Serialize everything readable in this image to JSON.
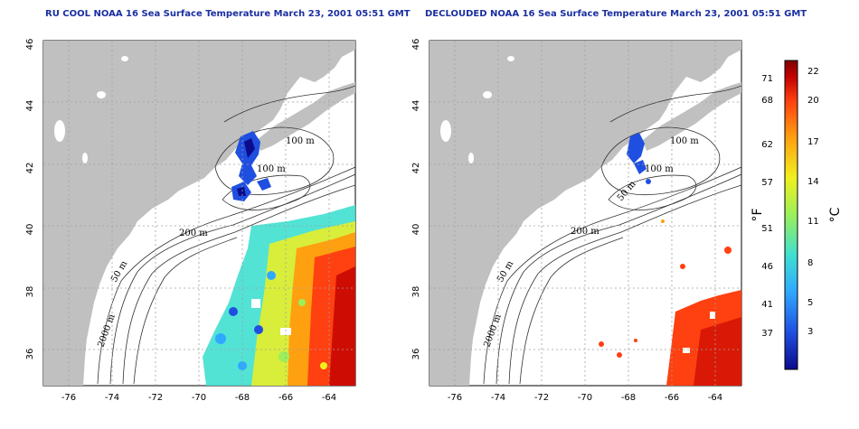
{
  "panels": [
    {
      "title": "RU COOL NOAA 16 Sea Surface Temperature March 23, 2001 05:51 GMT",
      "contour_labels": [
        "100 m",
        "100 m",
        "200 m",
        "50 m",
        "2000 m"
      ]
    },
    {
      "title": "DECLOUDED NOAA 16 Sea Surface Temperature March 23, 2001 05:51 GMT",
      "contour_labels": [
        "100 m",
        "100 m",
        "50 m",
        "200 m",
        "50 m",
        "2000 m"
      ]
    }
  ],
  "axes": {
    "lat_ticks": [
      "46",
      "44",
      "42",
      "40",
      "38",
      "36"
    ],
    "lon_ticks": [
      "-76",
      "-74",
      "-72",
      "-70",
      "-68",
      "-66",
      "-64"
    ]
  },
  "colorbar": {
    "fahrenheit_label": "°F",
    "celsius_label": "°C",
    "fahrenheit_ticks": [
      "71",
      "68",
      "62",
      "57",
      "51",
      "46",
      "41",
      "37"
    ],
    "celsius_ticks": [
      "22",
      "20",
      "17",
      "14",
      "11",
      "8",
      "5",
      "3"
    ],
    "colors": [
      "#0b0b8c",
      "#1f4fe0",
      "#2fa8ff",
      "#3fe0d0",
      "#9bf05a",
      "#f0f020",
      "#ffa010",
      "#ff4010",
      "#c00000",
      "#800000"
    ]
  },
  "colors": {
    "land": "#c0c0c0",
    "ocean": "#ffffff",
    "grid": "#a0a0a0",
    "title": "#1a2fa0"
  }
}
